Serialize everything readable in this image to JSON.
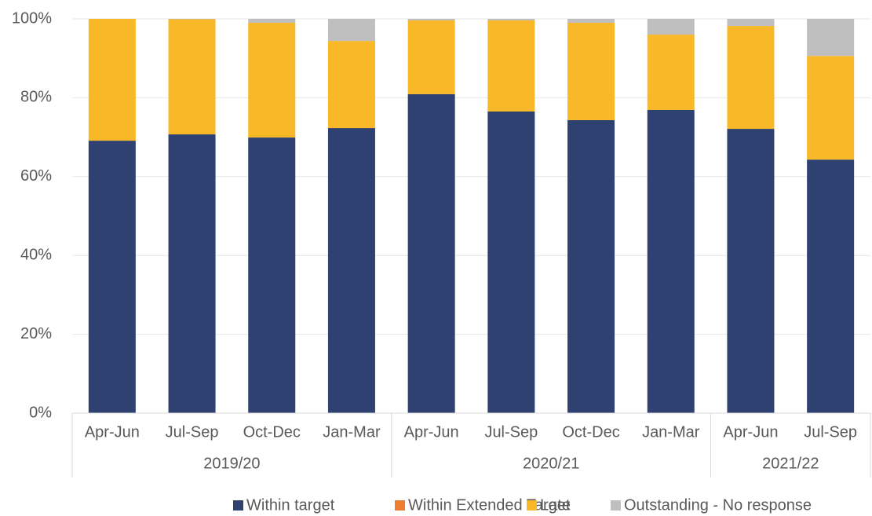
{
  "chart_data": {
    "type": "stacked-bar",
    "groups": [
      {
        "label": "2019/20",
        "categories": [
          "Apr-Jun",
          "Jul-Sep",
          "Oct-Dec",
          "Jan-Mar"
        ]
      },
      {
        "label": "2020/21",
        "categories": [
          "Apr-Jun",
          "Jul-Sep",
          "Oct-Dec",
          "Jan-Mar"
        ]
      },
      {
        "label": "2021/22",
        "categories": [
          "Apr-Jun",
          "Jul-Sep"
        ]
      }
    ],
    "series": [
      {
        "name": "Within target",
        "color": "#2e4170",
        "values": [
          69.1,
          70.7,
          69.9,
          72.3,
          80.9,
          76.5,
          74.3,
          76.9,
          72.1,
          64.3
        ]
      },
      {
        "name": "Within Extended Target",
        "color": "#ed7d31",
        "values": [
          0,
          0,
          0,
          0,
          0,
          0,
          0,
          0,
          0,
          0
        ]
      },
      {
        "name": "Late",
        "color": "#f8b828",
        "values": [
          30.9,
          29.2,
          29.1,
          22.1,
          18.7,
          23.1,
          24.7,
          19.1,
          26.1,
          26.3
        ]
      },
      {
        "name": "Outstanding - No response",
        "color": "#bfbfbf",
        "values": [
          0,
          0.1,
          1.0,
          5.6,
          0.4,
          0.4,
          1.0,
          4.0,
          1.8,
          9.4
        ]
      }
    ],
    "ylim": [
      0,
      100
    ],
    "yticks": [
      {
        "value": 0,
        "label": "0%"
      },
      {
        "value": 20,
        "label": "20%"
      },
      {
        "value": 40,
        "label": "40%"
      },
      {
        "value": 60,
        "label": "60%"
      },
      {
        "value": 80,
        "label": "80%"
      },
      {
        "value": 100,
        "label": "100%"
      }
    ],
    "grid": true,
    "legend": "bottom"
  }
}
